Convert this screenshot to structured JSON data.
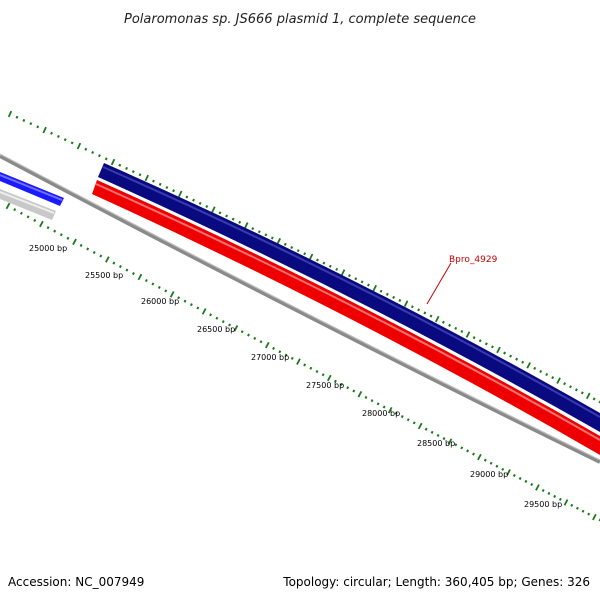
{
  "title": "Polaromonas sp. JS666 plasmid 1, complete sequence",
  "footer": {
    "accession": "Accession: NC_007949",
    "summary": "Topology: circular; Length: 360,405 bp; Genes: 326"
  },
  "scale_labels": [
    "25000 bp",
    "25500 bp",
    "26000 bp",
    "26500 bp",
    "27000 bp",
    "27500 bp",
    "28000 bp",
    "28500 bp",
    "29000 bp",
    "29500 bp"
  ],
  "gene_label": "Bpro_4929",
  "colors": {
    "backbone": "#8a8a8a",
    "gene_forward": "#0a0a80",
    "gene_reverse": "#ee0000",
    "gene_blue": "#1a1aff",
    "gene_gray": "#c8c8c8",
    "ticks": "#1a7a1a",
    "label_line": "#cc0000"
  }
}
